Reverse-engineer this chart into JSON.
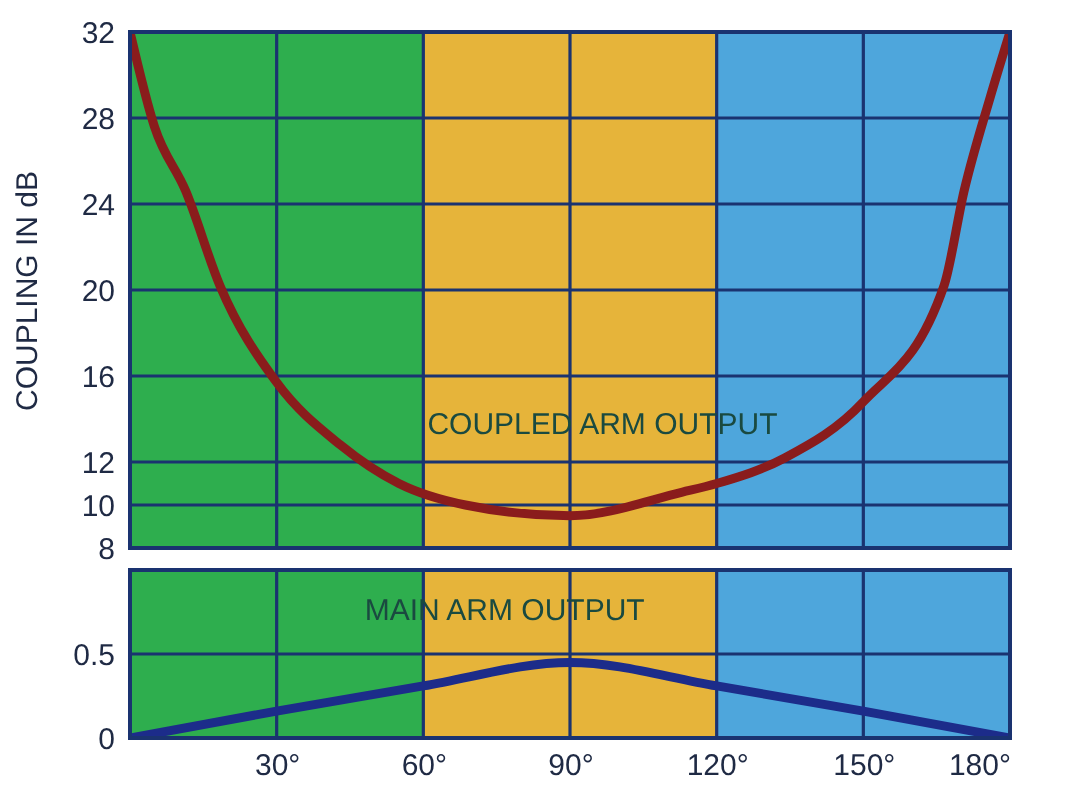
{
  "chart_data": [
    {
      "type": "line",
      "ylabel": "COUPLING IN dB",
      "xlim": [
        0,
        180
      ],
      "xticks": [
        30,
        60,
        90,
        120,
        150,
        180
      ],
      "ylim": [
        8,
        32
      ],
      "yticks": [
        8,
        10,
        12,
        16,
        20,
        24,
        28,
        32
      ],
      "grid": true,
      "tick_labels": "y",
      "bands": [
        {
          "axis": "x",
          "from": 0,
          "to": 60,
          "color": "#2eae4e"
        },
        {
          "axis": "x",
          "from": 60,
          "to": 120,
          "color": "#e6b43a"
        },
        {
          "axis": "x",
          "from": 120,
          "to": 180,
          "color": "#4ea6dc"
        }
      ],
      "series": [
        {
          "color": "#8a1c1c",
          "x": [
            0,
            5,
            11.4,
            18.4,
            30,
            43,
            55,
            68.6,
            90,
            113,
            120,
            134,
            150,
            166.5,
            170.6,
            176,
            180
          ],
          "values": [
            32,
            27.6,
            24.6,
            20.2,
            15.7,
            12.8,
            11.0,
            10.0,
            9.5,
            10.6,
            11.0,
            12.2,
            14.8,
            20.2,
            24.6,
            29,
            32
          ]
        }
      ],
      "annotations": [
        {
          "text": "COUPLED ARM OUTPUT",
          "x": 113,
          "y": 10.6
        }
      ]
    },
    {
      "type": "line",
      "xlim": [
        0,
        180
      ],
      "xticks": [
        {
          "value": 30,
          "label": "30°"
        },
        {
          "value": 60,
          "label": "60°"
        },
        {
          "value": 90,
          "label": "90°"
        },
        {
          "value": 120,
          "label": "120°"
        },
        {
          "value": 150,
          "label": "150°"
        },
        {
          "value": 180,
          "label": "180°"
        }
      ],
      "ylim": [
        0,
        1
      ],
      "yticks": [
        0,
        0.5
      ],
      "grid": true,
      "bands": [
        {
          "axis": "x",
          "from": 0,
          "to": 60,
          "color": "#2eae4e"
        },
        {
          "axis": "x",
          "from": 60,
          "to": 120,
          "color": "#e6b43a"
        },
        {
          "axis": "x",
          "from": 120,
          "to": 180,
          "color": "#4ea6dc"
        }
      ],
      "series": [
        {
          "color": "#1c2c8a",
          "x": [
            0,
            30,
            60,
            90,
            120,
            150,
            180
          ],
          "values": [
            0,
            0.16,
            0.31,
            0.45,
            0.31,
            0.16,
            0
          ]
        }
      ],
      "annotations": [
        {
          "text": "MAIN ARM OUTPUT",
          "x": 93,
          "y": 0.45
        }
      ]
    }
  ]
}
